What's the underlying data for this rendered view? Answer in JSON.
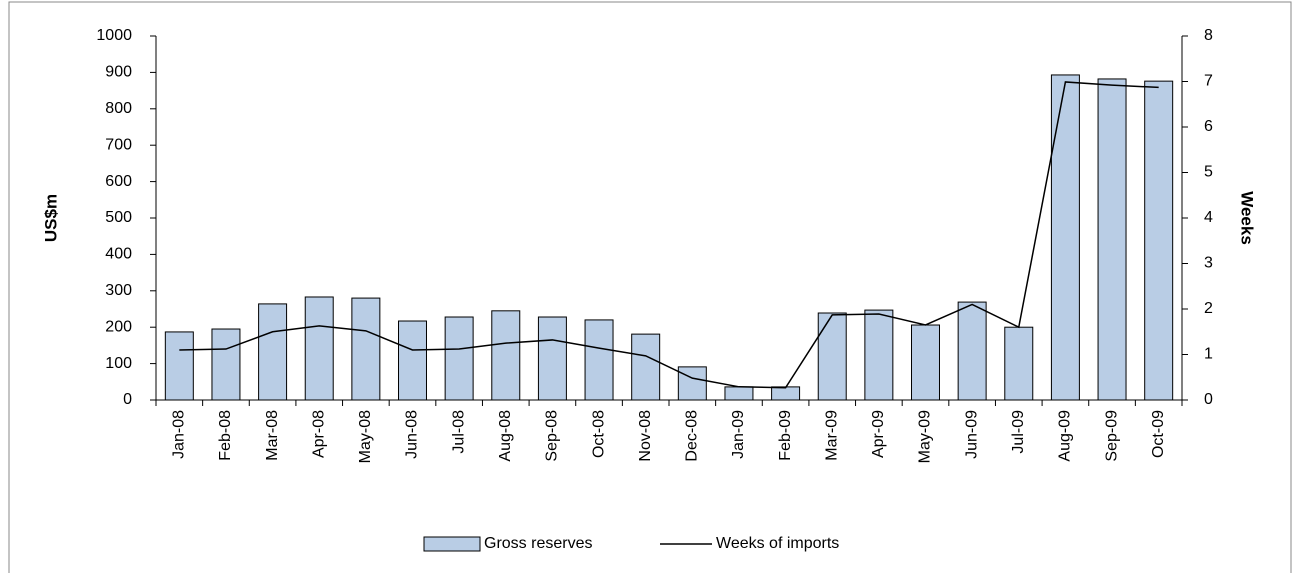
{
  "chart_data": {
    "type": "bar_line",
    "categories": [
      "Jan-08",
      "Feb-08",
      "Mar-08",
      "Apr-08",
      "May-08",
      "Jun-08",
      "Jul-08",
      "Aug-08",
      "Sep-08",
      "Oct-08",
      "Nov-08",
      "Dec-08",
      "Jan-09",
      "Feb-09",
      "Mar-09",
      "Apr-09",
      "May-09",
      "Jun-09",
      "Jul-09",
      "Aug-09",
      "Sep-09",
      "Oct-09"
    ],
    "y_label": "US$m",
    "y2_label": "Weeks",
    "ylim": [
      0,
      1000
    ],
    "yticks": [
      0,
      100,
      200,
      300,
      400,
      500,
      600,
      700,
      800,
      900,
      1000
    ],
    "y2lim": [
      0,
      8
    ],
    "y2ticks": [
      0,
      1,
      2,
      3,
      4,
      5,
      6,
      7,
      8
    ],
    "series": [
      {
        "name": "Gross reserves",
        "type": "bar",
        "color": "#b9cde5",
        "values": [
          187,
          195,
          264,
          283,
          280,
          217,
          228,
          245,
          228,
          220,
          181,
          91,
          36,
          36,
          239,
          247,
          206,
          269,
          200,
          893,
          882,
          876
        ]
      },
      {
        "name": "Weeks of imports",
        "type": "line",
        "axis": "y2",
        "color": "#000000",
        "values": [
          1.1,
          1.12,
          1.5,
          1.63,
          1.52,
          1.1,
          1.12,
          1.25,
          1.32,
          1.14,
          0.97,
          0.48,
          0.29,
          0.27,
          1.87,
          1.89,
          1.65,
          2.1,
          1.6,
          6.99,
          6.92,
          6.87
        ]
      }
    ]
  }
}
